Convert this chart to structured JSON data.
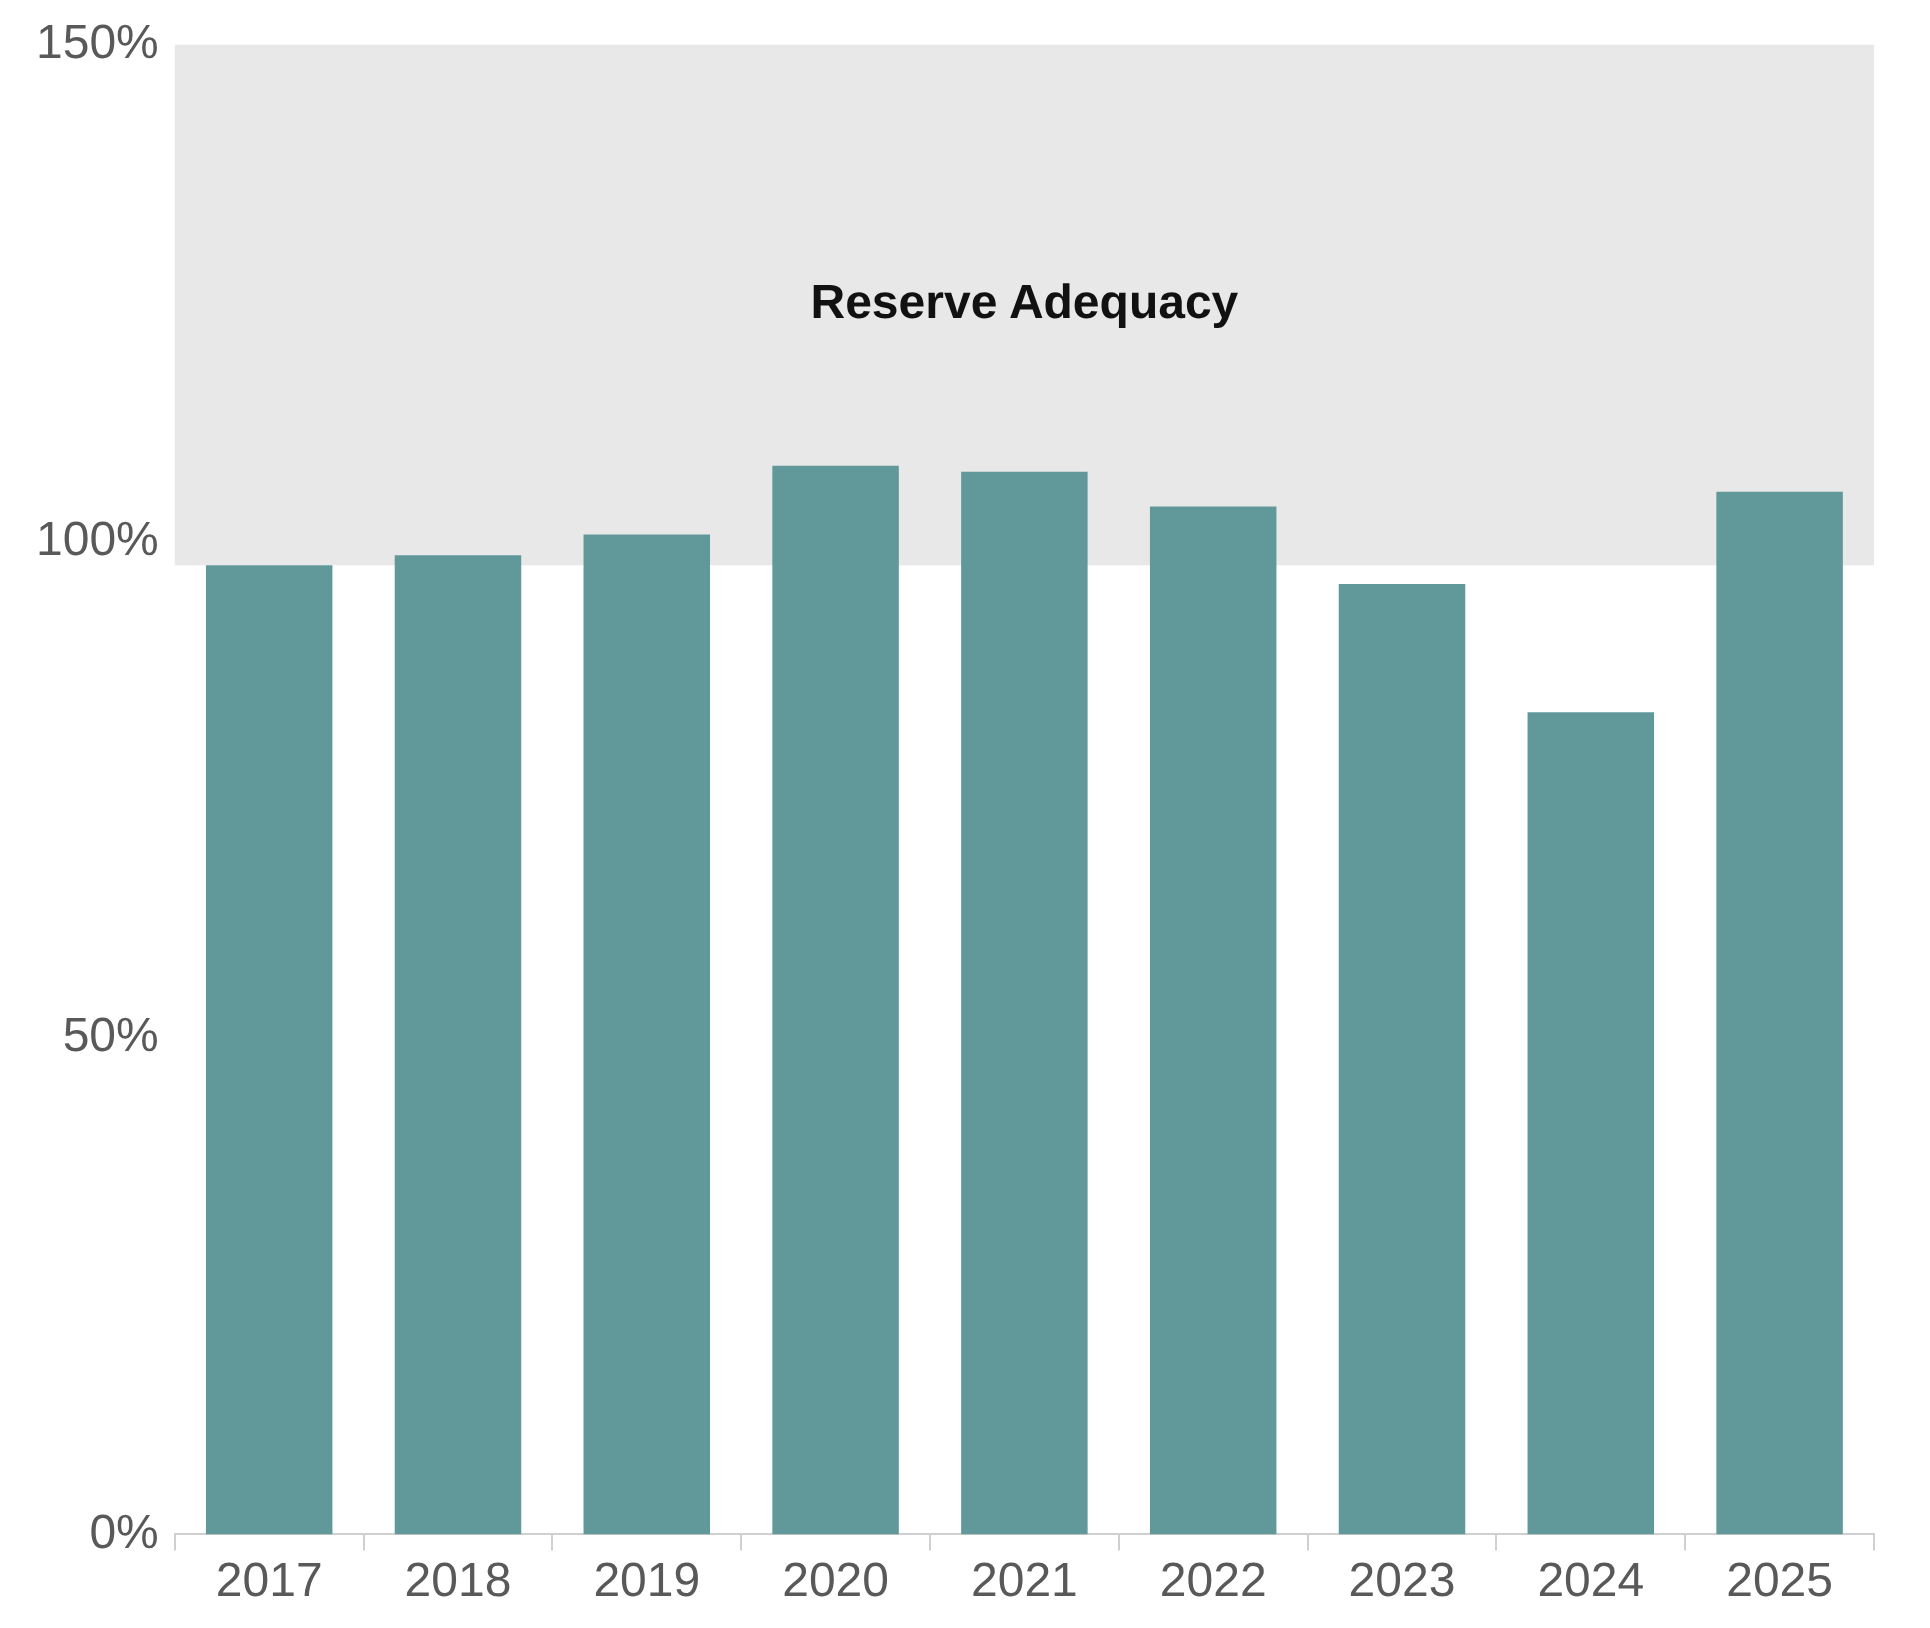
{
  "chart_data": {
    "type": "bar",
    "categories": [
      "2017",
      "2018",
      "2019",
      "2020",
      "2021",
      "2022",
      "2023",
      "2024",
      "2025"
    ],
    "values": [
      97.6,
      98.6,
      100.7,
      107.6,
      107,
      103.5,
      95.7,
      82.8,
      105
    ],
    "color": "#61999a",
    "ylim": [
      0,
      150
    ],
    "yticks": [
      {
        "value": 0,
        "label": "0%"
      },
      {
        "value": 50,
        "label": "50%"
      },
      {
        "value": 100,
        "label": "100%"
      },
      {
        "value": 150,
        "label": "150%"
      }
    ],
    "bands": [
      {
        "axis": "y",
        "from": 97.6,
        "to": 150,
        "label": "Reserve Adequacy",
        "color": "#e8e8e8"
      }
    ],
    "grid": false,
    "legend": false
  }
}
